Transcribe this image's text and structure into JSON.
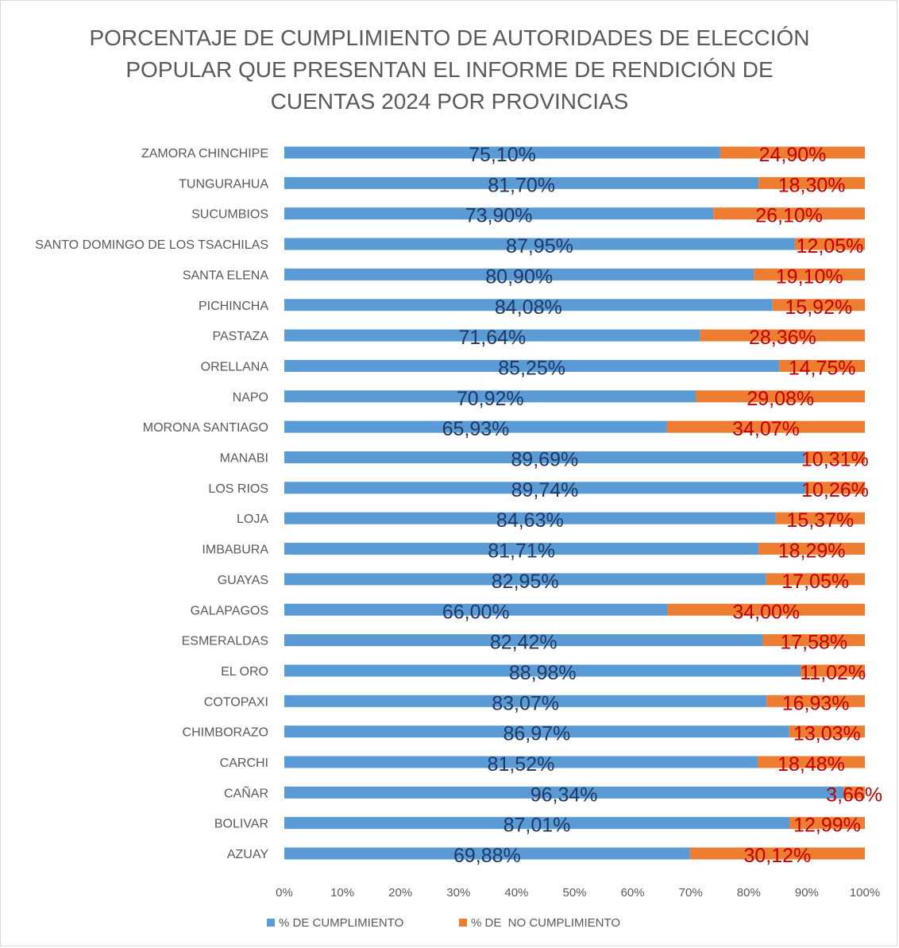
{
  "chart_data": {
    "type": "bar",
    "orientation": "horizontal",
    "stacked": true,
    "title": "PORCENTAJE DE CUMPLIMIENTO DE AUTORIDADES DE ELECCIÓN\nPOPULAR  QUE PRESENTAN EL INFORME DE RENDICIÓN DE\nCUENTAS 2024 POR PROVINCIAS",
    "categories": [
      "ZAMORA CHINCHIPE",
      "TUNGURAHUA",
      "SUCUMBIOS",
      "SANTO DOMINGO DE LOS TSACHILAS",
      "SANTA ELENA",
      "PICHINCHA",
      "PASTAZA",
      "ORELLANA",
      "NAPO",
      "MORONA SANTIAGO",
      "MANABI",
      "LOS RIOS",
      "LOJA",
      "IMBABURA",
      "GUAYAS",
      "GALAPAGOS",
      "ESMERALDAS",
      "EL ORO",
      "COTOPAXI",
      "CHIMBORAZO",
      "CARCHI",
      "CAÑAR",
      "BOLIVAR",
      "AZUAY"
    ],
    "series": [
      {
        "name": "% DE CUMPLIMIENTO",
        "color": "#5b9bd5",
        "values": [
          75.1,
          81.7,
          73.9,
          87.95,
          80.9,
          84.08,
          71.64,
          85.25,
          70.92,
          65.93,
          89.69,
          89.74,
          84.63,
          81.71,
          82.95,
          66.0,
          82.42,
          88.98,
          83.07,
          86.97,
          81.52,
          96.34,
          87.01,
          69.88
        ],
        "labels": [
          "75,10%",
          "81,70%",
          "73,90%",
          "87,95%",
          "80,90%",
          "84,08%",
          "71,64%",
          "85,25%",
          "70,92%",
          "65,93%",
          "89,69%",
          "89,74%",
          "84,63%",
          "81,71%",
          "82,95%",
          "66,00%",
          "82,42%",
          "88,98%",
          "83,07%",
          "86,97%",
          "81,52%",
          "96,34%",
          "87,01%",
          "69,88%"
        ]
      },
      {
        "name": "% DE  NO CUMPLIMIENTO",
        "color": "#ed7d31",
        "values": [
          24.9,
          18.3,
          26.1,
          12.05,
          19.1,
          15.92,
          28.36,
          14.75,
          29.08,
          34.07,
          10.31,
          10.26,
          15.37,
          18.29,
          17.05,
          34.0,
          17.58,
          11.02,
          16.93,
          13.03,
          18.48,
          3.66,
          12.99,
          30.12
        ],
        "labels": [
          "24,90%",
          "18,30%",
          "26,10%",
          "12,05%",
          "19,10%",
          "15,92%",
          "28,36%",
          "14,75%",
          "29,08%",
          "34,07%",
          "10,31%",
          "10,26%",
          "15,37%",
          "18,29%",
          "17,05%",
          "34,00%",
          "17,58%",
          "11,02%",
          "16,93%",
          "13,03%",
          "18,48%",
          "3,66%",
          "12,99%",
          "30,12%"
        ]
      }
    ],
    "x_ticks": [
      "0%",
      "10%",
      "20%",
      "30%",
      "40%",
      "50%",
      "60%",
      "70%",
      "80%",
      "90%",
      "100%"
    ],
    "xlim": [
      0,
      100
    ],
    "grid": false,
    "legend_position": "bottom",
    "label_colors": {
      "cumplimiento": "#1f3864",
      "no_cumplimiento": "#c00000"
    }
  }
}
